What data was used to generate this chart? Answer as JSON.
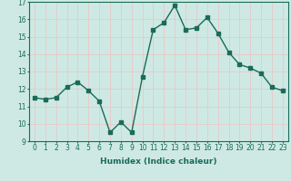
{
  "x": [
    0,
    1,
    2,
    3,
    4,
    5,
    6,
    7,
    8,
    9,
    10,
    11,
    12,
    13,
    14,
    15,
    16,
    17,
    18,
    19,
    20,
    21,
    22,
    23
  ],
  "y": [
    11.5,
    11.4,
    11.5,
    12.1,
    12.4,
    11.9,
    11.3,
    9.5,
    10.1,
    9.5,
    12.7,
    15.4,
    15.8,
    16.8,
    15.4,
    15.5,
    16.1,
    15.2,
    14.1,
    13.4,
    13.2,
    12.9,
    12.1,
    11.9
  ],
  "line_color": "#1a6b5a",
  "marker": "s",
  "markersize": 2.5,
  "linewidth": 1.0,
  "xlabel": "Humidex (Indice chaleur)",
  "xlim": [
    -0.5,
    23.5
  ],
  "ylim": [
    9,
    17
  ],
  "yticks": [
    9,
    10,
    11,
    12,
    13,
    14,
    15,
    16,
    17
  ],
  "xticks": [
    0,
    1,
    2,
    3,
    4,
    5,
    6,
    7,
    8,
    9,
    10,
    11,
    12,
    13,
    14,
    15,
    16,
    17,
    18,
    19,
    20,
    21,
    22,
    23
  ],
  "bg_color": "#cee9e3",
  "grid_color": "#e8c8c8",
  "tick_color": "#1a6b5a",
  "label_color": "#1a6b5a",
  "xlabel_fontsize": 6.5,
  "tick_fontsize": 5.5
}
